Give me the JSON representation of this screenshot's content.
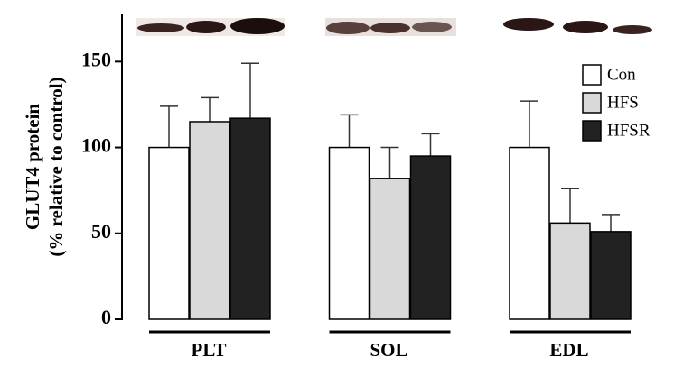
{
  "chart_data": {
    "type": "bar",
    "y_label": [
      "GLUT4 protein",
      "(% relative to control)"
    ],
    "categories": [
      "PLT",
      "SOL",
      "EDL"
    ],
    "series": [
      {
        "name": "Con",
        "color": "#ffffff",
        "values": [
          100,
          100,
          100
        ],
        "errors": [
          24,
          19,
          27
        ]
      },
      {
        "name": "HFS",
        "color": "#d9d9d9",
        "values": [
          115,
          82,
          56
        ],
        "errors": [
          14,
          18,
          20
        ]
      },
      {
        "name": "HFSR",
        "color": "#222222",
        "values": [
          117,
          95,
          51
        ],
        "errors": [
          32,
          13,
          10
        ]
      }
    ],
    "ylim": [
      0,
      178
    ],
    "yticks": [
      0,
      50,
      100,
      150
    ],
    "legend": "upper right"
  }
}
